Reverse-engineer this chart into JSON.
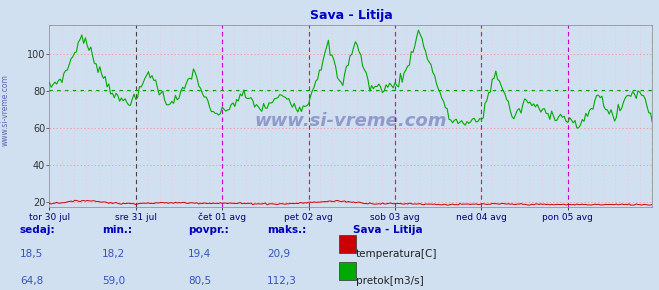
{
  "title": "Sava - Litija",
  "title_color": "#0000cc",
  "bg_color": "#d0e0f0",
  "plot_bg_color": "#d0e0f0",
  "grid_h_color": "#ff8888",
  "grid_v_color": "#ffbbbb",
  "vline_magenta": "#cc00cc",
  "vline_black": "#444444",
  "temp_color": "#cc0000",
  "flow_color": "#00aa00",
  "avg_color": "#009900",
  "ylim": [
    17,
    116
  ],
  "yticks": [
    20,
    40,
    60,
    80,
    100
  ],
  "flow_avg": 80.5,
  "temp_avg": 19.4,
  "x_labels": [
    "tor 30 jul",
    "sre 31 jul",
    "čet 01 avg",
    "pet 02 avg",
    "sob 03 avg",
    "ned 04 avg",
    "pon 05 avg"
  ],
  "legend_title": "Sava - Litija",
  "legend_temp": "temperatura[C]",
  "legend_flow": "pretok[m3/s]",
  "stat_labels": [
    "sedaj:",
    "min.:",
    "povpr.:",
    "maks.:"
  ],
  "stat_temp": [
    18.5,
    18.2,
    19.4,
    20.9
  ],
  "stat_flow": [
    64.8,
    59.0,
    80.5,
    112.3
  ],
  "watermark": "www.si-vreme.com",
  "sidebar_text": "www.si-vreme.com",
  "n_points": 336
}
